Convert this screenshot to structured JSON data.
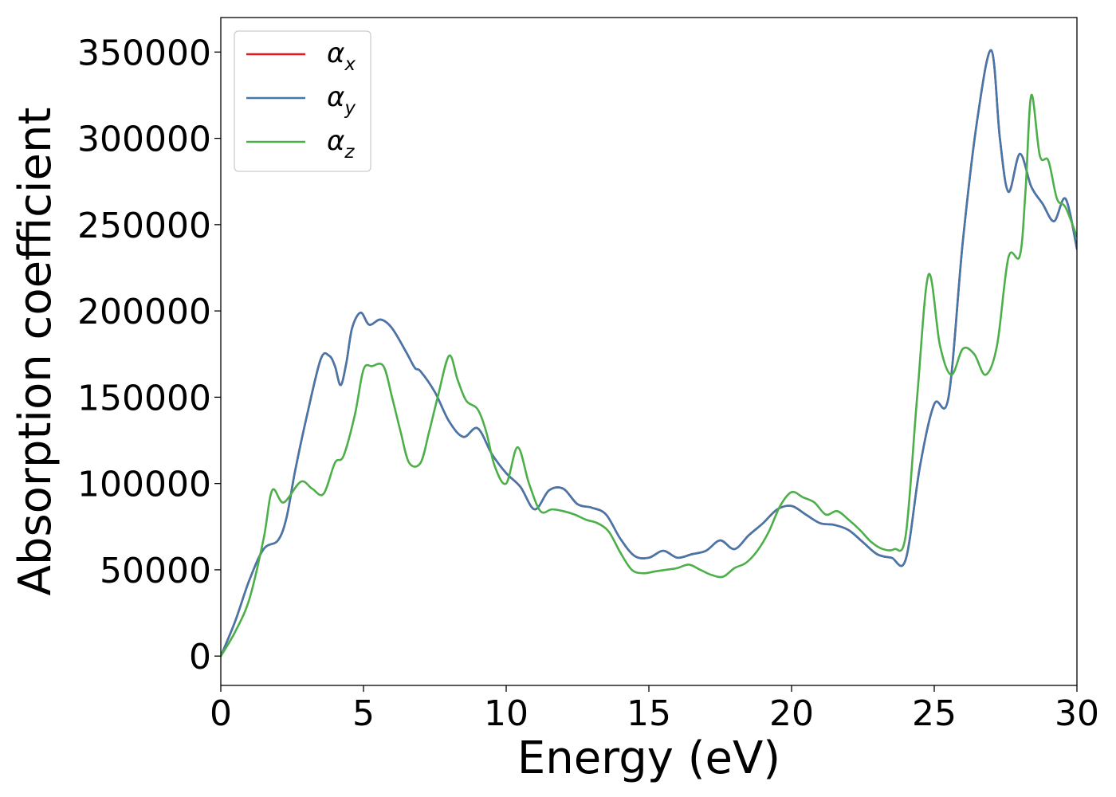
{
  "chart_data": {
    "type": "line",
    "title": "",
    "xlabel": "Energy (eV)",
    "ylabel": "Absorption coefficient",
    "xlim": [
      0,
      30
    ],
    "ylim": [
      -17000,
      370000
    ],
    "xticks": [
      0,
      5,
      10,
      15,
      20,
      25,
      30
    ],
    "yticks": [
      0,
      50000,
      100000,
      150000,
      200000,
      250000,
      300000,
      350000
    ],
    "grid": false,
    "legend_position": "top-left",
    "series": [
      {
        "name": "α_x",
        "legend_main": "α",
        "legend_sub": "x",
        "color": "#e41a1c",
        "x": [
          0,
          0.5,
          1,
          1.5,
          2,
          2.3,
          2.6,
          3,
          3.5,
          3.8,
          4,
          4.2,
          4.4,
          4.6,
          4.9,
          5.2,
          5.6,
          6,
          6.5,
          6.8,
          7,
          7.5,
          8,
          8.5,
          9,
          9.5,
          10,
          10.5,
          11,
          11.5,
          12,
          12.5,
          13,
          13.5,
          14,
          14.5,
          15,
          15.5,
          16,
          16.5,
          17,
          17.5,
          18,
          18.5,
          19,
          19.5,
          20,
          20.5,
          21,
          21.5,
          22,
          22.5,
          23,
          23.5,
          24,
          24.5,
          25,
          25.5,
          26,
          26.5,
          27,
          27.3,
          27.6,
          28,
          28.4,
          28.8,
          29.2,
          29.6,
          30
        ],
        "y": [
          0,
          20000,
          44000,
          62000,
          67000,
          80000,
          107000,
          138000,
          172000,
          174000,
          168000,
          157000,
          170000,
          190000,
          199000,
          192000,
          195000,
          190000,
          176000,
          167000,
          165000,
          153000,
          136000,
          127000,
          132000,
          117000,
          106000,
          98000,
          85000,
          96000,
          97000,
          88000,
          86000,
          82000,
          68000,
          58000,
          57000,
          61000,
          57000,
          59000,
          61000,
          67000,
          62000,
          70000,
          77000,
          85000,
          87000,
          82000,
          77000,
          76000,
          73000,
          66000,
          59000,
          57000,
          56000,
          110000,
          146000,
          150000,
          240000,
          310000,
          351000,
          300000,
          269000,
          291000,
          272000,
          262000,
          252000,
          265000,
          236000
        ]
      },
      {
        "name": "α_y",
        "legend_main": "α",
        "legend_sub": "y",
        "color": "#4477aa",
        "x": [
          0,
          0.5,
          1,
          1.5,
          2,
          2.3,
          2.6,
          3,
          3.5,
          3.8,
          4,
          4.2,
          4.4,
          4.6,
          4.9,
          5.2,
          5.6,
          6,
          6.5,
          6.8,
          7,
          7.5,
          8,
          8.5,
          9,
          9.5,
          10,
          10.5,
          11,
          11.5,
          12,
          12.5,
          13,
          13.5,
          14,
          14.5,
          15,
          15.5,
          16,
          16.5,
          17,
          17.5,
          18,
          18.5,
          19,
          19.5,
          20,
          20.5,
          21,
          21.5,
          22,
          22.5,
          23,
          23.5,
          24,
          24.5,
          25,
          25.5,
          26,
          26.5,
          27,
          27.3,
          27.6,
          28,
          28.4,
          28.8,
          29.2,
          29.6,
          30
        ],
        "y": [
          0,
          20000,
          44000,
          62000,
          67000,
          80000,
          107000,
          138000,
          172000,
          174000,
          168000,
          157000,
          170000,
          190000,
          199000,
          192000,
          195000,
          190000,
          176000,
          167000,
          165000,
          153000,
          136000,
          127000,
          132000,
          117000,
          106000,
          98000,
          85000,
          96000,
          97000,
          88000,
          86000,
          82000,
          68000,
          58000,
          57000,
          61000,
          57000,
          59000,
          61000,
          67000,
          62000,
          70000,
          77000,
          85000,
          87000,
          82000,
          77000,
          76000,
          73000,
          66000,
          59000,
          57000,
          56000,
          110000,
          146000,
          150000,
          240000,
          310000,
          351000,
          300000,
          269000,
          291000,
          272000,
          262000,
          252000,
          265000,
          236000
        ]
      },
      {
        "name": "α_z",
        "legend_main": "α",
        "legend_sub": "z",
        "color": "#4daf4a",
        "x": [
          0,
          0.5,
          1,
          1.5,
          1.8,
          2.2,
          2.8,
          3.2,
          3.6,
          4,
          4.3,
          4.7,
          5,
          5.3,
          5.7,
          6,
          6.3,
          6.6,
          7,
          7.3,
          7.6,
          8,
          8.3,
          8.6,
          9,
          9.3,
          9.6,
          10,
          10.4,
          10.8,
          11.2,
          11.6,
          12,
          12.4,
          12.8,
          13.2,
          13.6,
          14,
          14.4,
          14.8,
          15.2,
          15.6,
          16,
          16.4,
          16.8,
          17.2,
          17.6,
          18,
          18.4,
          18.8,
          19.2,
          19.6,
          20,
          20.4,
          20.8,
          21.2,
          21.6,
          22,
          22.4,
          22.8,
          23.2,
          23.6,
          24,
          24.4,
          24.8,
          25.2,
          25.6,
          26,
          26.4,
          26.8,
          27.2,
          27.6,
          28,
          28.2,
          28.4,
          28.7,
          29,
          29.3,
          29.6,
          30
        ],
        "y": [
          0,
          14000,
          33000,
          68000,
          96000,
          89000,
          101000,
          97000,
          94000,
          112000,
          116000,
          140000,
          166000,
          168000,
          168000,
          150000,
          130000,
          112000,
          112000,
          130000,
          150000,
          174000,
          160000,
          148000,
          143000,
          130000,
          110000,
          100000,
          121000,
          100000,
          84000,
          85000,
          84000,
          82000,
          79000,
          77000,
          72000,
          60000,
          50000,
          48000,
          49000,
          50000,
          51000,
          53000,
          50000,
          47000,
          46000,
          51000,
          54000,
          61000,
          72000,
          87000,
          95000,
          92000,
          89000,
          82000,
          84000,
          79000,
          73000,
          66000,
          62000,
          62000,
          70000,
          150000,
          221000,
          180000,
          163000,
          178000,
          175000,
          163000,
          180000,
          231000,
          232000,
          270000,
          325000,
          290000,
          287000,
          265000,
          260000,
          243000
        ]
      }
    ]
  }
}
